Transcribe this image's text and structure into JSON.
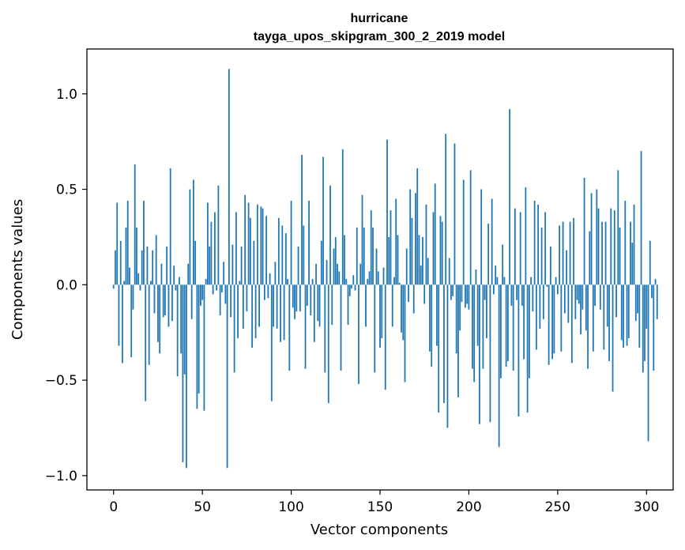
{
  "chart_data": {
    "type": "bar",
    "title": "hurricane",
    "subtitle": "tayga_upos_skipgram_300_2_2019 model",
    "xlabel": "Vector components",
    "ylabel": "Components values",
    "xlim": [
      -15,
      315
    ],
    "ylim": [
      -1.075,
      1.235
    ],
    "xticks": [
      0,
      50,
      100,
      150,
      200,
      250,
      300
    ],
    "xtick_labels": [
      "0",
      "50",
      "100",
      "150",
      "200",
      "250",
      "300"
    ],
    "yticks": [
      -1.0,
      -0.5,
      0.0,
      0.5,
      1.0
    ],
    "ytick_labels": [
      "−1.0",
      "−0.5",
      "0.0",
      "0.5",
      "1.0"
    ],
    "grid": false,
    "legend": "none",
    "bar_color": "#1f77b4",
    "values": [
      -0.02,
      0.18,
      0.43,
      -0.32,
      0.23,
      -0.41,
      0.02,
      0.3,
      0.44,
      0.09,
      -0.38,
      -0.13,
      0.63,
      0.3,
      0.06,
      -0.03,
      0.18,
      0.44,
      -0.61,
      0.2,
      -0.42,
      0.02,
      0.18,
      -0.15,
      0.26,
      -0.3,
      -0.36,
      0.11,
      -0.17,
      -0.16,
      0.2,
      -0.22,
      0.61,
      -0.19,
      0.1,
      -0.03,
      -0.48,
      0.04,
      -0.36,
      -0.93,
      -0.47,
      -0.96,
      0.11,
      0.5,
      -0.18,
      0.55,
      0.23,
      -0.65,
      -0.57,
      -0.11,
      -0.08,
      -0.66,
      0.03,
      0.43,
      0.2,
      0.33,
      -0.05,
      0.38,
      -0.03,
      0.52,
      -0.16,
      -0.04,
      0.12,
      -0.1,
      -0.96,
      1.13,
      -0.17,
      0.21,
      -0.46,
      0.38,
      -0.28,
      0.02,
      0.2,
      -0.23,
      0.47,
      -0.14,
      0.43,
      0.35,
      -0.33,
      0.23,
      -0.28,
      0.42,
      -0.22,
      0.41,
      0.4,
      -0.08,
      0.36,
      -0.07,
      0.06,
      -0.61,
      -0.22,
      0.12,
      -0.23,
      0.35,
      -0.3,
      0.31,
      -0.29,
      0.27,
      0.03,
      -0.45,
      0.44,
      -0.12,
      -0.18,
      -0.14,
      0.2,
      -0.14,
      0.68,
      0.31,
      -0.44,
      -0.11,
      0.44,
      -0.16,
      0.03,
      -0.3,
      0.11,
      -0.19,
      -0.22,
      0.23,
      0.67,
      -0.46,
      0.13,
      -0.62,
      0.52,
      -0.21,
      0.19,
      0.25,
      0.11,
      0.07,
      -0.45,
      0.71,
      0.26,
      0.03,
      -0.21,
      -0.06,
      -0.02,
      0.05,
      -0.03,
      0.3,
      -0.52,
      0.11,
      0.47,
      0.3,
      -0.22,
      0.03,
      0.07,
      0.39,
      0.3,
      -0.46,
      0.19,
      0.07,
      -0.33,
      -0.28,
      0.09,
      -0.55,
      0.76,
      0.25,
      0.39,
      -0.22,
      0.04,
      0.45,
      0.26,
      0.01,
      -0.25,
      -0.29,
      -0.51,
      0.19,
      -0.09,
      0.5,
      0.35,
      -0.15,
      0.48,
      0.61,
      0.26,
      0.1,
      0.25,
      -0.1,
      0.42,
      0.14,
      -0.35,
      -0.43,
      0.38,
      0.53,
      -0.32,
      -0.67,
      0.36,
      0.33,
      -0.62,
      0.79,
      -0.75,
      0.14,
      -0.08,
      -0.06,
      0.74,
      -0.36,
      -0.59,
      -0.24,
      -0.09,
      0.55,
      -0.12,
      -0.1,
      -0.13,
      0.6,
      -0.44,
      -0.51,
      0.08,
      -0.32,
      -0.73,
      0.5,
      -0.44,
      -0.08,
      -0.28,
      0.32,
      -0.72,
      0.45,
      -0.05,
      0.1,
      0.04,
      -0.85,
      -0.49,
      0.21,
      0.04,
      -0.43,
      -0.4,
      0.92,
      -0.11,
      -0.45,
      0.4,
      -0.08,
      -0.69,
      0.38,
      -0.11,
      -0.39,
      0.51,
      -0.67,
      -0.49,
      0.04,
      -0.14,
      0.44,
      -0.34,
      0.42,
      -0.23,
      0.3,
      -0.18,
      0.38,
      -0.01,
      -0.42,
      0.2,
      -0.39,
      -0.36,
      0.04,
      -0.05,
      0.31,
      -0.35,
      0.33,
      -0.15,
      0.18,
      -0.2,
      0.33,
      -0.41,
      0.35,
      -0.18,
      -0.08,
      -0.1,
      -0.26,
      -0.13,
      0.56,
      -0.24,
      -0.44,
      0.28,
      0.48,
      -0.35,
      -0.11,
      0.5,
      0.4,
      -0.13,
      0.33,
      -0.34,
      0.33,
      -0.22,
      -0.4,
      0.4,
      -0.56,
      0.39,
      -0.17,
      0.6,
      0.3,
      -0.29,
      -0.33,
      0.44,
      -0.32,
      -0.28,
      0.33,
      0.22,
      0.42,
      -0.19,
      -0.15,
      -0.33,
      0.7,
      -0.46,
      -0.4,
      -0.23,
      -0.82,
      0.23,
      -0.07,
      -0.45,
      0.03,
      -0.18
    ]
  }
}
